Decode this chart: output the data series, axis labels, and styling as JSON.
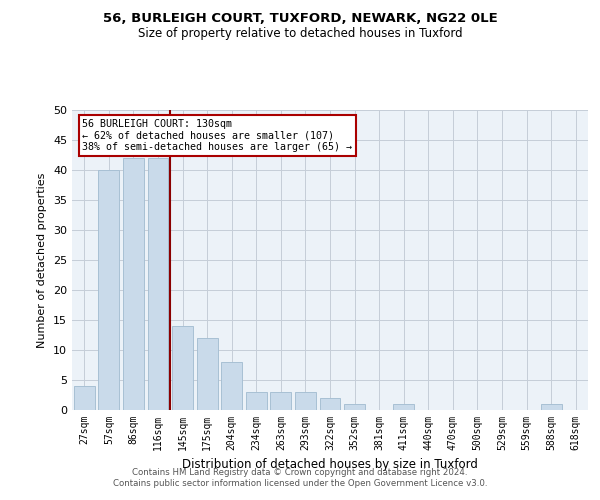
{
  "title1": "56, BURLEIGH COURT, TUXFORD, NEWARK, NG22 0LE",
  "title2": "Size of property relative to detached houses in Tuxford",
  "xlabel": "Distribution of detached houses by size in Tuxford",
  "ylabel": "Number of detached properties",
  "categories": [
    "27sqm",
    "57sqm",
    "86sqm",
    "116sqm",
    "145sqm",
    "175sqm",
    "204sqm",
    "234sqm",
    "263sqm",
    "293sqm",
    "322sqm",
    "352sqm",
    "381sqm",
    "411sqm",
    "440sqm",
    "470sqm",
    "500sqm",
    "529sqm",
    "559sqm",
    "588sqm",
    "618sqm"
  ],
  "values": [
    4,
    40,
    42,
    42,
    14,
    12,
    8,
    3,
    3,
    3,
    2,
    1,
    0,
    1,
    0,
    0,
    0,
    0,
    0,
    1,
    0
  ],
  "bar_color": "#c9daea",
  "bar_edge_color": "#a8c0d4",
  "vline_x": 3.48,
  "vline_color": "#8b0000",
  "annotation_line1": "56 BURLEIGH COURT: 130sqm",
  "annotation_line2": "← 62% of detached houses are smaller (107)",
  "annotation_line3": "38% of semi-detached houses are larger (65) →",
  "annotation_box_color": "#aa0000",
  "background_color": "#ecf2f8",
  "grid_color": "#c5cdd8",
  "footer1": "Contains HM Land Registry data © Crown copyright and database right 2024.",
  "footer2": "Contains public sector information licensed under the Open Government Licence v3.0.",
  "ylim": [
    0,
    50
  ],
  "yticks": [
    0,
    5,
    10,
    15,
    20,
    25,
    30,
    35,
    40,
    45,
    50
  ]
}
